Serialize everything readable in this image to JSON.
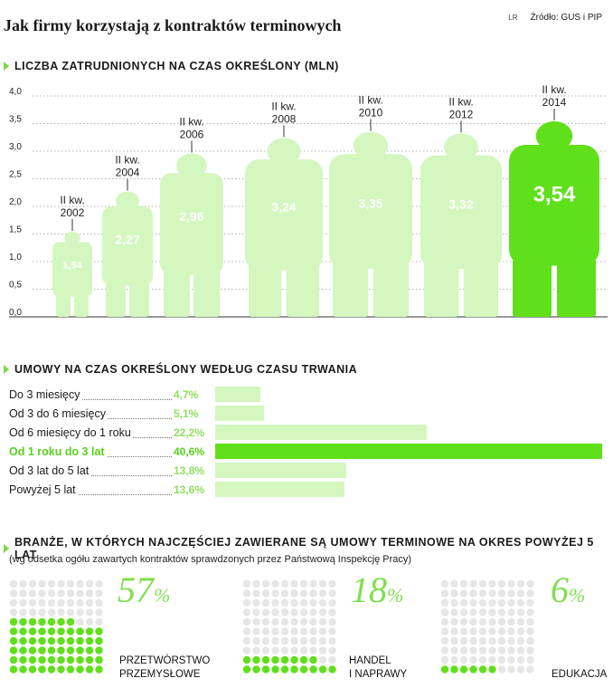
{
  "title": "Jak firmy korzystają z kontraktów terminowych",
  "source_prefix": "LR",
  "source": "Źródło: GUS i PIP",
  "colors": {
    "light": "#d4f7c0",
    "highlight": "#5fe01a",
    "accent": "#7edf4c",
    "dot_inactive": "#e6e6e6"
  },
  "section1": "LICZBA ZATRUDNIONYCH NA CZAS OKREŚLONY (MLN)",
  "section2": "UMOWY NA CZAS OKREŚLONY WEDŁUG CZASU TRWANIA",
  "section3": "BRANŻE, W KTÓRYCH NAJCZĘŚCIEJ ZAWIERANE SĄ UMOWY TERMINOWE NA OKRES POWYŻEJ 5 LAT",
  "section3_note": "(wg odsetka ogółu zawartych kontraktów  sprawdzonych przez Państwową Inspekcję Pracy)",
  "chart_data": [
    {
      "type": "bar",
      "title": "LICZBA ZATRUDNIONYCH NA CZAS OKREŚLONY (MLN)",
      "categories_line1": [
        "II kw.",
        "II kw.",
        "II kw.",
        "II kw.",
        "II kw.",
        "II kw.",
        "II kw."
      ],
      "categories_line2": [
        "2002",
        "2004",
        "2006",
        "2008",
        "2010",
        "2012",
        "2014"
      ],
      "values": [
        1.54,
        2.27,
        2.96,
        3.24,
        3.35,
        3.32,
        3.54
      ],
      "value_labels": [
        "1,54",
        "2,27",
        "2,96",
        "3,24",
        "3,35",
        "3,32",
        "3,54"
      ],
      "highlight_index": 6,
      "ylim": [
        0,
        4
      ],
      "yticks": [
        "0,0",
        "0,5",
        "1,0",
        "1,5",
        "2,0",
        "2,5",
        "3,0",
        "3,5",
        "4,0"
      ],
      "grid": true
    },
    {
      "type": "bar",
      "title": "UMOWY NA CZAS OKREŚLONY WEDŁUG CZASU TRWANIA",
      "categories": [
        "Do 3 miesięcy",
        "Od 3 do 6 miesięcy",
        "Od 6 miesięcy do 1 roku",
        "Od 1 roku do 3 lat",
        "Od 3 lat do 5 lat",
        "Powyżej 5 lat"
      ],
      "values": [
        4.7,
        5.1,
        22.2,
        40.6,
        13.8,
        13.6
      ],
      "value_labels": [
        "4,7%",
        "5,1%",
        "22,2%",
        "40,6%",
        "13,8%",
        "13,6%"
      ],
      "highlight_index": 3
    },
    {
      "type": "table",
      "title": "BRANŻE, W KTÓRYCH NAJCZĘŚCIEJ ZAWIERANE SĄ UMOWY TERMINOWE NA OKRES POWYŻEJ 5 LAT",
      "sectors": [
        {
          "label_lines": [
            "PRZETWÓRSTWO",
            "PRZEMYSŁOWE"
          ],
          "value": 57,
          "pct": "57",
          "pct_sign": "%"
        },
        {
          "label_lines": [
            "HANDEL",
            "I NAPRAWY"
          ],
          "value": 18,
          "pct": "18",
          "pct_sign": "%"
        },
        {
          "label_lines": [
            "EDUKACJA"
          ],
          "value": 6,
          "pct": "6",
          "pct_sign": "%"
        }
      ]
    }
  ]
}
